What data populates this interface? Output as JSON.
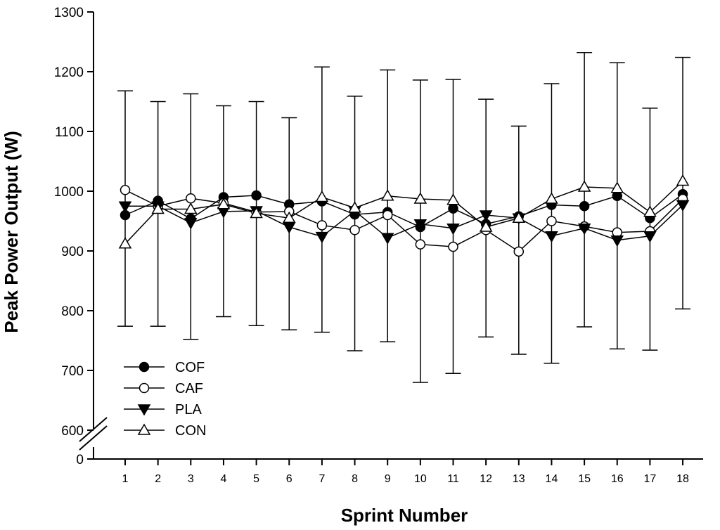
{
  "chart_data": {
    "type": "line",
    "xlabel": "Sprint Number",
    "ylabel": "Peak Power Output (W)",
    "x": [
      1,
      2,
      3,
      4,
      5,
      6,
      7,
      8,
      9,
      10,
      11,
      12,
      13,
      14,
      15,
      16,
      17,
      18
    ],
    "ylim": [
      600,
      1300
    ],
    "y_axis_break": true,
    "y_ticks": [
      600,
      700,
      800,
      900,
      1000,
      1100,
      1200,
      1300
    ],
    "y_tick_labels": [
      "600",
      "700",
      "800",
      "900",
      "1000",
      "1100",
      "1200",
      "1300"
    ],
    "y_break_label": "0",
    "legend_position": "bottom-left",
    "grid": false,
    "series": [
      {
        "name": "COF",
        "marker": "filled-circle",
        "values": [
          960,
          984,
          954,
          990,
          993,
          978,
          983,
          961,
          965,
          940,
          971,
          945,
          958,
          977,
          975,
          992,
          955,
          995
        ]
      },
      {
        "name": "CAF",
        "marker": "open-circle",
        "values": [
          1002,
          975,
          988,
          980,
          965,
          966,
          943,
          935,
          960,
          911,
          907,
          935,
          899,
          950,
          941,
          931,
          933,
          987
        ]
      },
      {
        "name": "PLA",
        "marker": "filled-triangle-down",
        "values": [
          975,
          975,
          947,
          966,
          967,
          940,
          924,
          967,
          922,
          945,
          938,
          960,
          955,
          925,
          938,
          918,
          925,
          977
        ]
      },
      {
        "name": "CON",
        "marker": "open-triangle-up",
        "values": [
          912,
          970,
          970,
          978,
          963,
          955,
          990,
          972,
          992,
          987,
          985,
          940,
          955,
          987,
          1007,
          1005,
          965,
          1017
        ]
      }
    ],
    "error_bars": {
      "upper": [
        1168,
        1150,
        1163,
        1143,
        1150,
        1123,
        1208,
        1159,
        1203,
        1186,
        1187,
        1154,
        1109,
        1180,
        1232,
        1215,
        1139,
        1224
      ],
      "lower": [
        774,
        774,
        752,
        790,
        775,
        768,
        764,
        733,
        748,
        680,
        695,
        756,
        727,
        712,
        773,
        736,
        734,
        803
      ]
    }
  }
}
